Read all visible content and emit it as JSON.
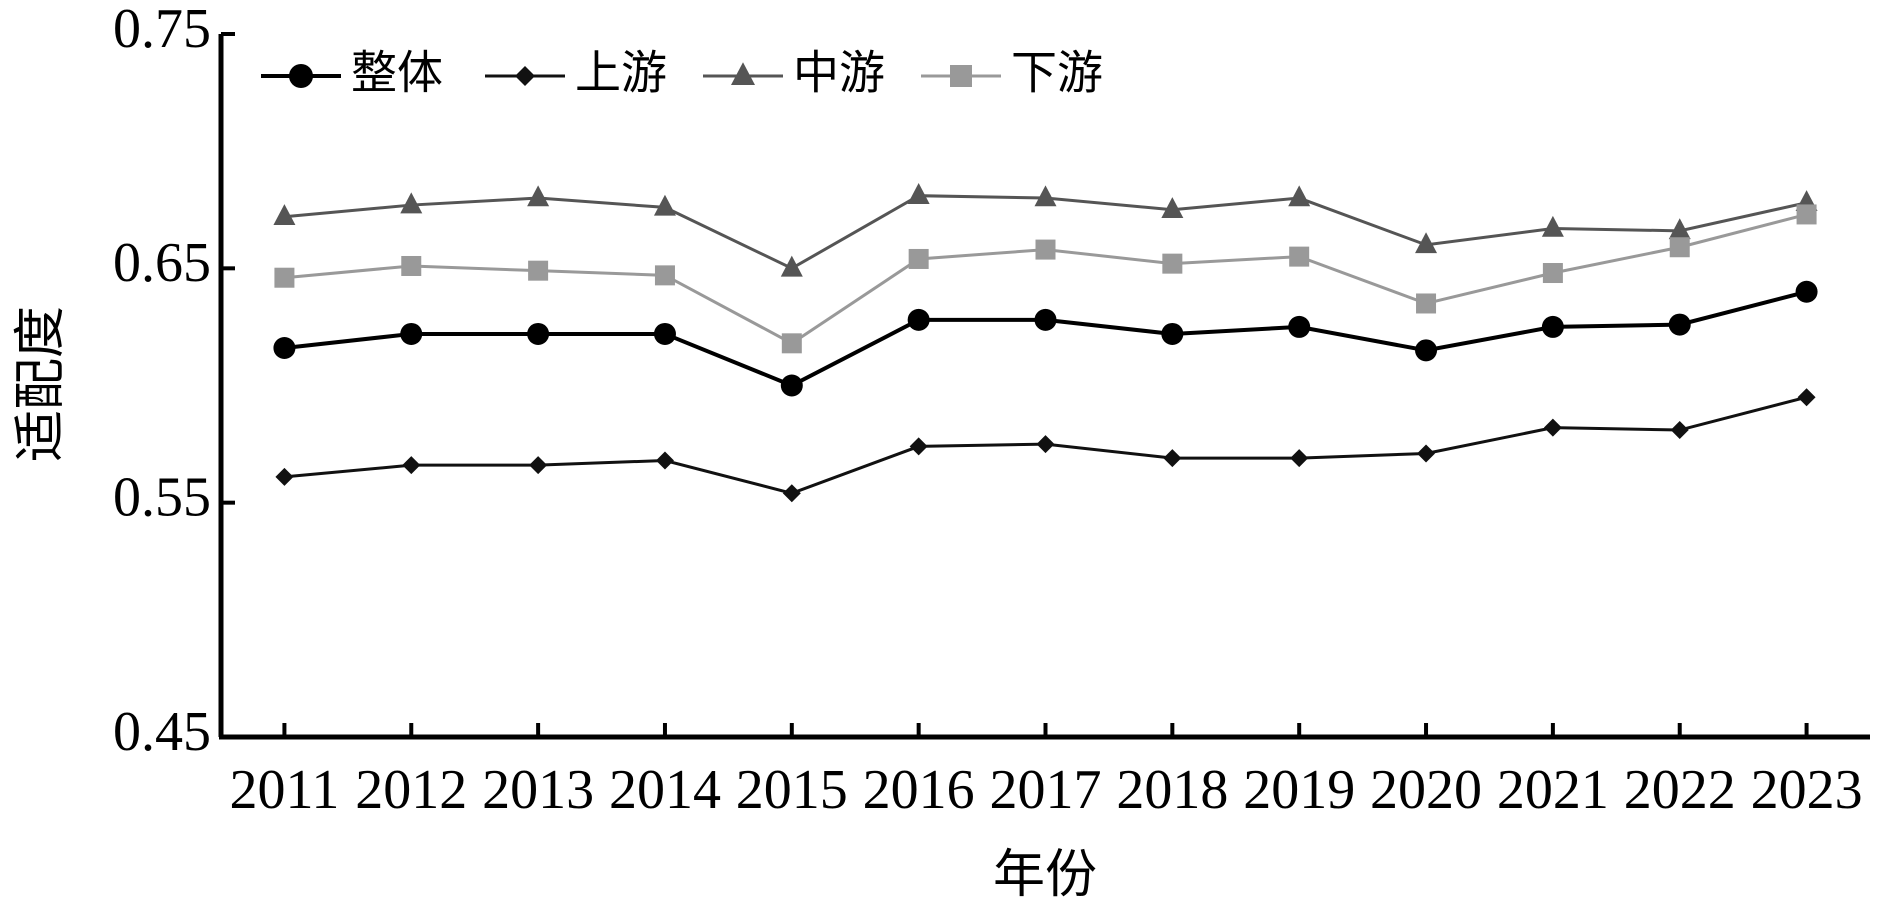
{
  "chart_data": {
    "type": "line",
    "x_label": "年份",
    "y_label": "适配度",
    "categories": [
      "2011",
      "2012",
      "2013",
      "2014",
      "2015",
      "2016",
      "2017",
      "2018",
      "2019",
      "2020",
      "2021",
      "2022",
      "2023"
    ],
    "ylim": [
      0.45,
      0.75
    ],
    "yticks": [
      0.45,
      0.55,
      0.65,
      0.75
    ],
    "legend": "upper left",
    "series": [
      {
        "name": "整体",
        "color": "#000000",
        "marker": "circle",
        "values": [
          0.616,
          0.622,
          0.622,
          0.622,
          0.6,
          0.628,
          0.628,
          0.622,
          0.625,
          0.615,
          0.625,
          0.626,
          0.64
        ]
      },
      {
        "name": "上游",
        "color": "#111111",
        "marker": "diamond",
        "values": [
          0.561,
          0.566,
          0.566,
          0.568,
          0.554,
          0.574,
          0.575,
          0.569,
          0.569,
          0.571,
          0.582,
          0.581,
          0.595
        ]
      },
      {
        "name": "中游",
        "color": "#555555",
        "marker": "triangle",
        "values": [
          0.672,
          0.677,
          0.68,
          0.676,
          0.65,
          0.681,
          0.68,
          0.675,
          0.68,
          0.66,
          0.667,
          0.666,
          0.678
        ]
      },
      {
        "name": "下游",
        "color": "#999999",
        "marker": "square",
        "values": [
          0.646,
          0.651,
          0.649,
          0.647,
          0.618,
          0.654,
          0.658,
          0.652,
          0.655,
          0.635,
          0.648,
          0.659,
          0.673
        ]
      }
    ]
  }
}
